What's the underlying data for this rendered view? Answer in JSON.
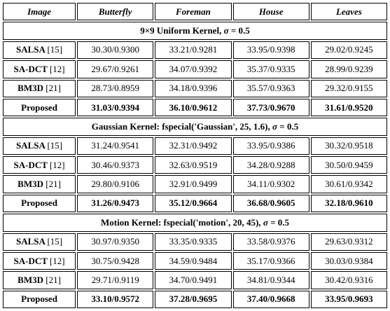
{
  "columns": [
    "Image",
    "Butterfly",
    "Foreman",
    "House",
    "Leaves"
  ],
  "sections": [
    {
      "title_prefix": "9×9 Uniform Kernel, ",
      "sigma_symbol": "σ",
      "title_suffix": " = 0.5",
      "rows": [
        {
          "method": "SALSA",
          "cite": "[15]",
          "values": [
            "30.30/0.9300",
            "33.21/0.9281",
            "33.95/0.9398",
            "29.02/0.9245"
          ]
        },
        {
          "method": "SA-DCT",
          "cite": "[12]",
          "values": [
            "29.67/0.9261",
            "34.07/0.9392",
            "35.37/0.9335",
            "28.99/0.9239"
          ]
        },
        {
          "method": "BM3D",
          "cite": "[21]",
          "values": [
            "28.73/0.8959",
            "34.18/0.9396",
            "35.57/0.9363",
            "29.32/0.9155"
          ]
        },
        {
          "method": "Proposed",
          "cite": "",
          "values": [
            "31.03/0.9394",
            "36.10/0.9612",
            "37.73/0.9670",
            "31.61/0.9520"
          ]
        }
      ]
    },
    {
      "title_prefix": "Gaussian Kernel: fspecial('Gaussian', 25, 1.6), ",
      "sigma_symbol": "σ",
      "title_suffix": " = 0.5",
      "rows": [
        {
          "method": "SALSA",
          "cite": "[15]",
          "values": [
            "31.24/0.9541",
            "32.31/0.9492",
            "33.95/0.9386",
            "30.32/0.9518"
          ]
        },
        {
          "method": "SA-DCT",
          "cite": "[12]",
          "values": [
            "30.46/0.9373",
            "32.63/0.9519",
            "34.28/0.9288",
            "30.50/0.9459"
          ]
        },
        {
          "method": "BM3D",
          "cite": "[21]",
          "values": [
            "29.80/0.9106",
            "32.91/0.9499",
            "34.11/0.9302",
            "30.61/0.9342"
          ]
        },
        {
          "method": "Proposed",
          "cite": "",
          "values": [
            "31.26/0.9473",
            "35.12/0.9664",
            "36.68/0.9605",
            "32.18/0.9610"
          ]
        }
      ]
    },
    {
      "title_prefix": "Motion Kernel: fspecial('motion', 20, 45), ",
      "sigma_symbol": "σ",
      "title_suffix": " = 0.5",
      "rows": [
        {
          "method": "SALSA",
          "cite": "[15]",
          "values": [
            "30.97/0.9350",
            "33.35/0.9335",
            "33.58/0.9376",
            "29.63/0.9312"
          ]
        },
        {
          "method": "SA-DCT",
          "cite": "[12]",
          "values": [
            "30.75/0.9428",
            "34.59/0.9484",
            "35.17/0.9366",
            "30.03/0.9384"
          ]
        },
        {
          "method": "BM3D",
          "cite": "[21]",
          "values": [
            "29.71/0.9119",
            "34.70/0.9491",
            "34.81/0.9344",
            "30.42/0.9316"
          ]
        },
        {
          "method": "Proposed",
          "cite": "",
          "values": [
            "33.10/0.9572",
            "37.28/0.9695",
            "37.40/0.9668",
            "33.95/0.9693"
          ]
        }
      ]
    }
  ]
}
